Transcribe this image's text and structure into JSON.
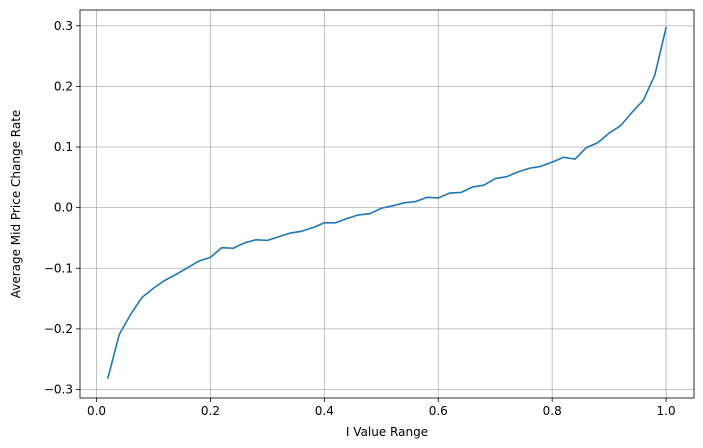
{
  "chart_data": {
    "type": "line",
    "title": "",
    "xlabel": "I Value Range",
    "ylabel": "Average Mid Price Change Rate",
    "xlim": [
      -0.029,
      1.049
    ],
    "ylim": [
      -0.314,
      0.326
    ],
    "grid": true,
    "x_ticks": [
      0.0,
      0.2,
      0.4,
      0.6,
      0.8,
      1.0
    ],
    "x_tick_labels": [
      "0.0",
      "0.2",
      "0.4",
      "0.6",
      "0.8",
      "1.0"
    ],
    "y_ticks": [
      -0.3,
      -0.2,
      -0.1,
      0.0,
      0.1,
      0.2,
      0.3
    ],
    "y_tick_labels": [
      "−0.3",
      "−0.2",
      "−0.1",
      "0.0",
      "0.1",
      "0.2",
      "0.3"
    ],
    "line_color": "#1f77b4",
    "grid_color": "#b0b0b0",
    "series": [
      {
        "x": [
          0.02,
          0.04,
          0.06,
          0.08,
          0.1,
          0.12,
          0.14,
          0.16,
          0.18,
          0.2,
          0.22,
          0.24,
          0.26,
          0.28,
          0.3,
          0.32,
          0.34,
          0.36,
          0.38,
          0.4,
          0.42,
          0.44,
          0.46,
          0.48,
          0.5,
          0.52,
          0.54,
          0.56,
          0.58,
          0.6,
          0.62,
          0.64,
          0.66,
          0.68,
          0.7,
          0.72,
          0.74,
          0.76,
          0.78,
          0.8,
          0.82,
          0.84,
          0.86,
          0.88,
          0.9,
          0.92,
          0.94,
          0.96,
          0.98,
          1.0
        ],
        "y": [
          -0.281,
          -0.209,
          -0.176,
          -0.148,
          -0.133,
          -0.12,
          -0.11,
          -0.099,
          -0.088,
          -0.082,
          -0.066,
          -0.067,
          -0.058,
          -0.053,
          -0.054,
          -0.048,
          -0.042,
          -0.039,
          -0.033,
          -0.025,
          -0.025,
          -0.018,
          -0.012,
          -0.01,
          -0.001,
          0.003,
          0.008,
          0.01,
          0.017,
          0.016,
          0.024,
          0.025,
          0.034,
          0.037,
          0.048,
          0.051,
          0.059,
          0.065,
          0.068,
          0.075,
          0.083,
          0.08,
          0.099,
          0.107,
          0.123,
          0.135,
          0.157,
          0.177,
          0.218,
          0.297
        ]
      }
    ]
  }
}
